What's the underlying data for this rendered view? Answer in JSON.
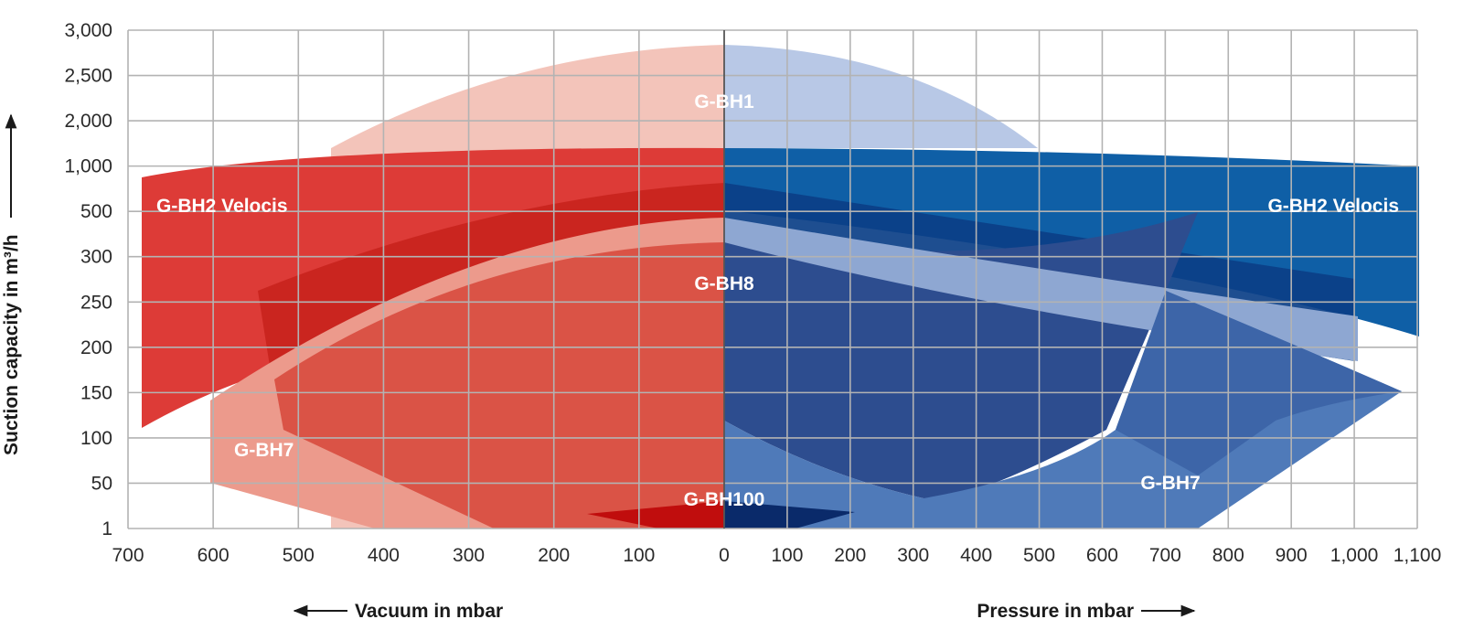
{
  "chart_data": {
    "type": "area",
    "ylabel": "Suction capacity in m³/h",
    "x_left_label": "Vacuum in mbar",
    "x_right_label": "Pressure in mbar",
    "x_left_ticks": [
      "700",
      "600",
      "500",
      "400",
      "300",
      "200",
      "100",
      "0"
    ],
    "x_right_ticks": [
      "0",
      "100",
      "200",
      "300",
      "400",
      "500",
      "600",
      "700",
      "800",
      "900",
      "1,000",
      "1,100"
    ],
    "y_ticks": [
      "1",
      "50",
      "100",
      "150",
      "200",
      "250",
      "300",
      "500",
      "1,000",
      "2,000",
      "2,500",
      "3,000"
    ],
    "vacuum_range_mbar": [
      0,
      700
    ],
    "pressure_range_mbar": [
      0,
      1100
    ],
    "grid": true,
    "colors": {
      "vacuum_dark": "#c81d1d",
      "vacuum_mid": "#e0413c",
      "vacuum_light": "#f08c80",
      "vacuum_pale": "#f3c4ba",
      "pressure_dark": "#0b3f87",
      "pressure_mid": "#0f5fa6",
      "pressure_light": "#5b86c3",
      "pressure_pale": "#b8c8e6"
    },
    "regions": [
      {
        "name": "G-BH1",
        "side": "both"
      },
      {
        "name": "G-BH2 Velocis",
        "side": "vacuum"
      },
      {
        "name": "G-BH2 Velocis",
        "side": "pressure"
      },
      {
        "name": "G-BH8",
        "side": "both"
      },
      {
        "name": "G-BH7",
        "side": "vacuum"
      },
      {
        "name": "G-BH7",
        "side": "pressure"
      },
      {
        "name": "G-BH100",
        "side": "both"
      }
    ]
  }
}
